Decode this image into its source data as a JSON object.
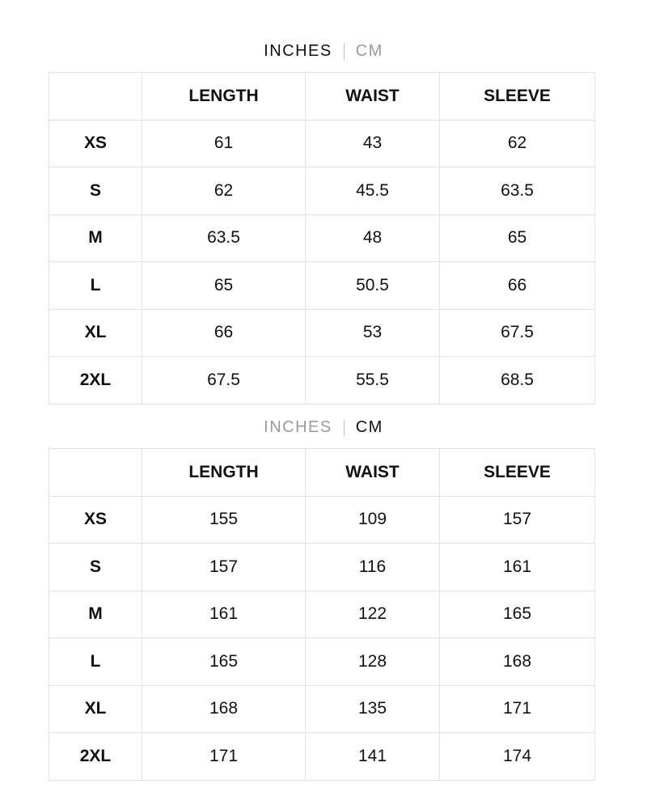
{
  "units": {
    "inches_label": "INCHES",
    "cm_label": "CM"
  },
  "columns": [
    "",
    "LENGTH",
    "WAIST",
    "SLEEVE"
  ],
  "tables": [
    {
      "unit_active": "inches",
      "rows": [
        [
          "XS",
          "61",
          "43",
          "62"
        ],
        [
          "S",
          "62",
          "45.5",
          "63.5"
        ],
        [
          "M",
          "63.5",
          "48",
          "65"
        ],
        [
          "L",
          "65",
          "50.5",
          "66"
        ],
        [
          "XL",
          "66",
          "53",
          "67.5"
        ],
        [
          "2XL",
          "67.5",
          "55.5",
          "68.5"
        ]
      ]
    },
    {
      "unit_active": "cm",
      "rows": [
        [
          "XS",
          "155",
          "109",
          "157"
        ],
        [
          "S",
          "157",
          "116",
          "161"
        ],
        [
          "M",
          "161",
          "122",
          "165"
        ],
        [
          "L",
          "165",
          "128",
          "168"
        ],
        [
          "XL",
          "168",
          "135",
          "171"
        ],
        [
          "2XL",
          "171",
          "141",
          "174"
        ]
      ]
    }
  ],
  "colors": {
    "active": "#111111",
    "inactive": "#9a9a9a",
    "border": "#e3e3e3"
  }
}
